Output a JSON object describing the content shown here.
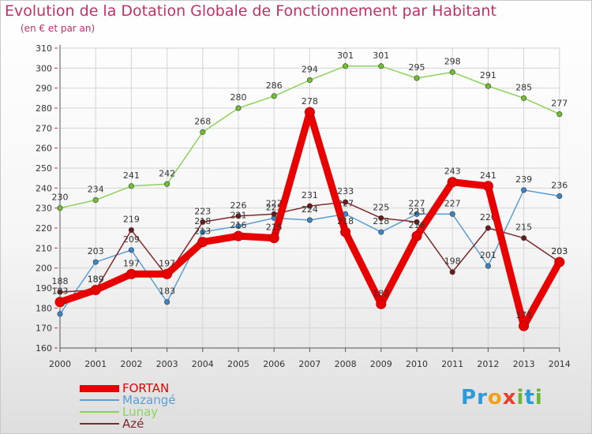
{
  "title": "Evolution de la Dotation Globale de Fonctionnement par Habitant",
  "subtitle": "(en € et par an)",
  "logo": {
    "text": "Proxiti",
    "letters": [
      {
        "ch": "P",
        "color": "#2a9ad8"
      },
      {
        "ch": "r",
        "color": "#2a9ad8"
      },
      {
        "ch": "o",
        "color": "#f2a21a"
      },
      {
        "ch": "x",
        "color": "#e8402a"
      },
      {
        "ch": "i",
        "color": "#6bb636"
      },
      {
        "ch": "t",
        "color": "#2a9ad8"
      },
      {
        "ch": "i",
        "color": "#6bb636"
      }
    ]
  },
  "chart_data": {
    "type": "line",
    "title": "Evolution de la Dotation Globale de Fonctionnement par Habitant",
    "subtitle": "(en € et par an)",
    "xlabel": "",
    "ylabel": "",
    "ylim": [
      160,
      310
    ],
    "ytick_step": 10,
    "grid": true,
    "legend_position": "bottom-left",
    "x": [
      "2000",
      "2001",
      "2002",
      "2003",
      "2004",
      "2005",
      "2006",
      "2007",
      "2008",
      "2009",
      "2010",
      "2011",
      "2012",
      "2013",
      "2014"
    ],
    "series": [
      {
        "name": "Lunay",
        "color": "#8cd25a",
        "marker": "#70c030",
        "values": [
          230,
          234,
          241,
          242,
          268,
          280,
          286,
          294,
          301,
          301,
          295,
          298,
          291,
          285,
          277
        ],
        "labels": [
          "230",
          "234",
          "241",
          "242",
          "268",
          "280",
          "286",
          "294",
          "301",
          "301",
          "295",
          "298",
          "291",
          "285",
          "277"
        ]
      },
      {
        "name": "Mazangé",
        "color": "#5a9ed2",
        "marker": "#3a86c8",
        "values": [
          177,
          203,
          209,
          183,
          218,
          221,
          225,
          224,
          227,
          218,
          227,
          227,
          201,
          239,
          236
        ],
        "labels": [
          "",
          "203",
          "209",
          "183",
          "218",
          "221",
          "225",
          "224",
          "227",
          "218",
          "227",
          "227",
          "201",
          "239",
          "236"
        ]
      },
      {
        "name": "Azé",
        "color": "#7a2a2a",
        "marker": "#6a1a1a",
        "values": [
          188,
          189,
          219,
          196,
          223,
          226,
          227,
          231,
          233,
          225,
          223,
          198,
          220,
          215,
          203
        ],
        "labels": [
          "188",
          "189",
          "219",
          "",
          "223",
          "226",
          "227",
          "231",
          "233",
          "225",
          "223",
          "198",
          "220",
          "215",
          "203"
        ]
      },
      {
        "name": "FORTAN",
        "color": "#e80000",
        "marker": "#e80000",
        "values": [
          183,
          189,
          197,
          197,
          213,
          216,
          215,
          278,
          218,
          182,
          216,
          243,
          241,
          171,
          203
        ],
        "labels": [
          "183",
          "189",
          "197",
          "197",
          "213",
          "216",
          "215",
          "278",
          "218",
          "182",
          "216",
          "243",
          "241",
          "171",
          "203"
        ]
      }
    ],
    "legend": [
      {
        "name": "FORTAN",
        "color": "#e80000",
        "width": 9
      },
      {
        "name": "Mazangé",
        "color": "#5a9ed2",
        "width": 1.5
      },
      {
        "name": "Lunay",
        "color": "#8cd25a",
        "width": 1.5
      },
      {
        "name": "Azé",
        "color": "#7a2a2a",
        "width": 1.5
      }
    ]
  }
}
